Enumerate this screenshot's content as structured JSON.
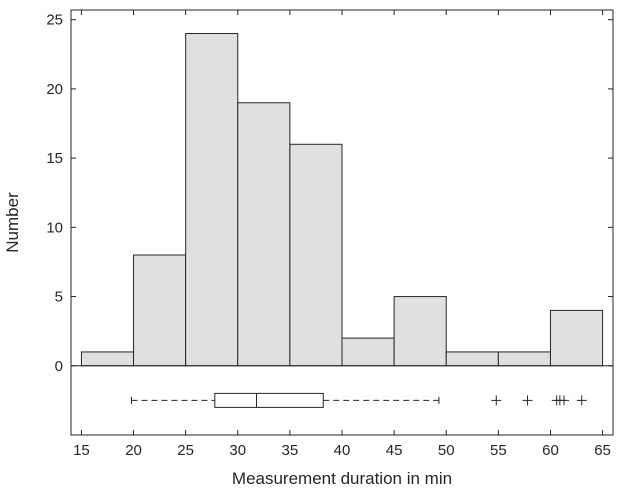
{
  "chart_data": {
    "type": "bar",
    "subtype": "histogram-with-boxplot",
    "xlabel": "Measurement duration in min",
    "ylabel": "Number",
    "xlim": [
      14,
      66
    ],
    "ylim": [
      -5,
      25.7
    ],
    "xticks": [
      15,
      20,
      25,
      30,
      35,
      40,
      45,
      50,
      55,
      60,
      65
    ],
    "yticks": [
      0,
      5,
      10,
      15,
      20,
      25
    ],
    "bins": [
      {
        "start": 15,
        "end": 20,
        "count": 1
      },
      {
        "start": 20,
        "end": 25,
        "count": 8
      },
      {
        "start": 25,
        "end": 30,
        "count": 24
      },
      {
        "start": 30,
        "end": 35,
        "count": 19
      },
      {
        "start": 35,
        "end": 40,
        "count": 16
      },
      {
        "start": 40,
        "end": 45,
        "count": 2
      },
      {
        "start": 45,
        "end": 50,
        "count": 5
      },
      {
        "start": 50,
        "end": 55,
        "count": 1
      },
      {
        "start": 55,
        "end": 60,
        "count": 1
      },
      {
        "start": 60,
        "end": 65,
        "count": 4
      }
    ],
    "boxplot": {
      "position_y": -2.5,
      "whisker_low": 19.8,
      "q1": 27.8,
      "median": 31.8,
      "q3": 38.2,
      "whisker_high": 49.3,
      "outliers": [
        54.8,
        57.8,
        60.6,
        60.9,
        61.3,
        63.0
      ]
    },
    "grid": false,
    "bar_fill": "#e0e0e0",
    "bar_stroke": "#262626"
  }
}
